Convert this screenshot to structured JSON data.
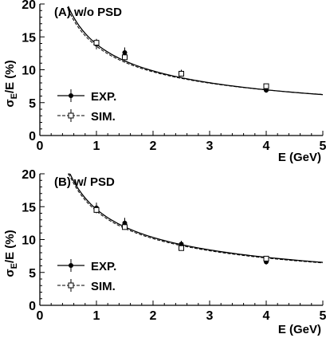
{
  "chart_data": [
    {
      "type": "scatter",
      "title": "(A)  w/o PSD",
      "xlabel": "E (GeV)",
      "ylabel_main": "σ",
      "ylabel_sub": "E",
      "ylabel_rest": "/E (%)",
      "xlim": [
        0,
        5
      ],
      "ylim": [
        0,
        20
      ],
      "x_ticks": [
        "0",
        "1",
        "2",
        "3",
        "4",
        "5"
      ],
      "y_ticks": [
        "0",
        "5",
        "10",
        "15",
        "20"
      ],
      "grid": false,
      "legend_position": "bottom-left",
      "series": [
        {
          "name": "EXP.",
          "marker": "filled-circle",
          "line": "solid",
          "x": [
            1.0,
            1.5,
            2.5,
            4.0
          ],
          "y": [
            13.9,
            12.6,
            9.5,
            6.9
          ],
          "yerr": [
            0.8,
            0.8,
            0.5,
            0.4
          ]
        },
        {
          "name": "SIM.",
          "marker": "open-square",
          "line": "dashed",
          "x": [
            1.0,
            1.5,
            2.5,
            4.0
          ],
          "y": [
            14.1,
            11.9,
            9.4,
            7.5
          ],
          "yerr": [
            0.4,
            0.4,
            0.3,
            0.3
          ]
        }
      ],
      "fit_curves": [
        {
          "series": "EXP.",
          "a": 13.9,
          "b": 0.0,
          "xmin": 0.5,
          "xmax": 5.0
        },
        {
          "series": "SIM.",
          "a": 13.5,
          "b": 1.6,
          "xmin": 0.5,
          "xmax": 5.0
        }
      ]
    },
    {
      "type": "scatter",
      "title": "(B)  w/ PSD",
      "xlabel": "E (GeV)",
      "ylabel_main": "σ",
      "ylabel_sub": "E",
      "ylabel_rest": "/E (%)",
      "xlim": [
        0,
        5
      ],
      "ylim": [
        0,
        20
      ],
      "x_ticks": [
        "0",
        "1",
        "2",
        "3",
        "4",
        "5"
      ],
      "y_ticks": [
        "0",
        "5",
        "10",
        "15",
        "20"
      ],
      "grid": false,
      "legend_position": "bottom-left",
      "series": [
        {
          "name": "EXP.",
          "marker": "filled-circle",
          "line": "solid",
          "x": [
            1.0,
            1.5,
            2.5,
            4.0
          ],
          "y": [
            14.8,
            12.5,
            9.3,
            6.6
          ],
          "yerr": [
            0.8,
            0.8,
            0.5,
            0.4
          ]
        },
        {
          "name": "SIM.",
          "marker": "open-square",
          "line": "dashed",
          "x": [
            1.0,
            1.5,
            2.5,
            4.0
          ],
          "y": [
            14.5,
            11.9,
            8.7,
            7.1
          ],
          "yerr": [
            0.4,
            0.4,
            0.3,
            0.3
          ]
        }
      ],
      "fit_curves": [
        {
          "series": "EXP.",
          "a": 14.6,
          "b": 0.0,
          "xmin": 0.5,
          "xmax": 5.0
        },
        {
          "series": "SIM.",
          "a": 14.3,
          "b": 0.8,
          "xmin": 0.5,
          "xmax": 5.0
        }
      ]
    }
  ]
}
